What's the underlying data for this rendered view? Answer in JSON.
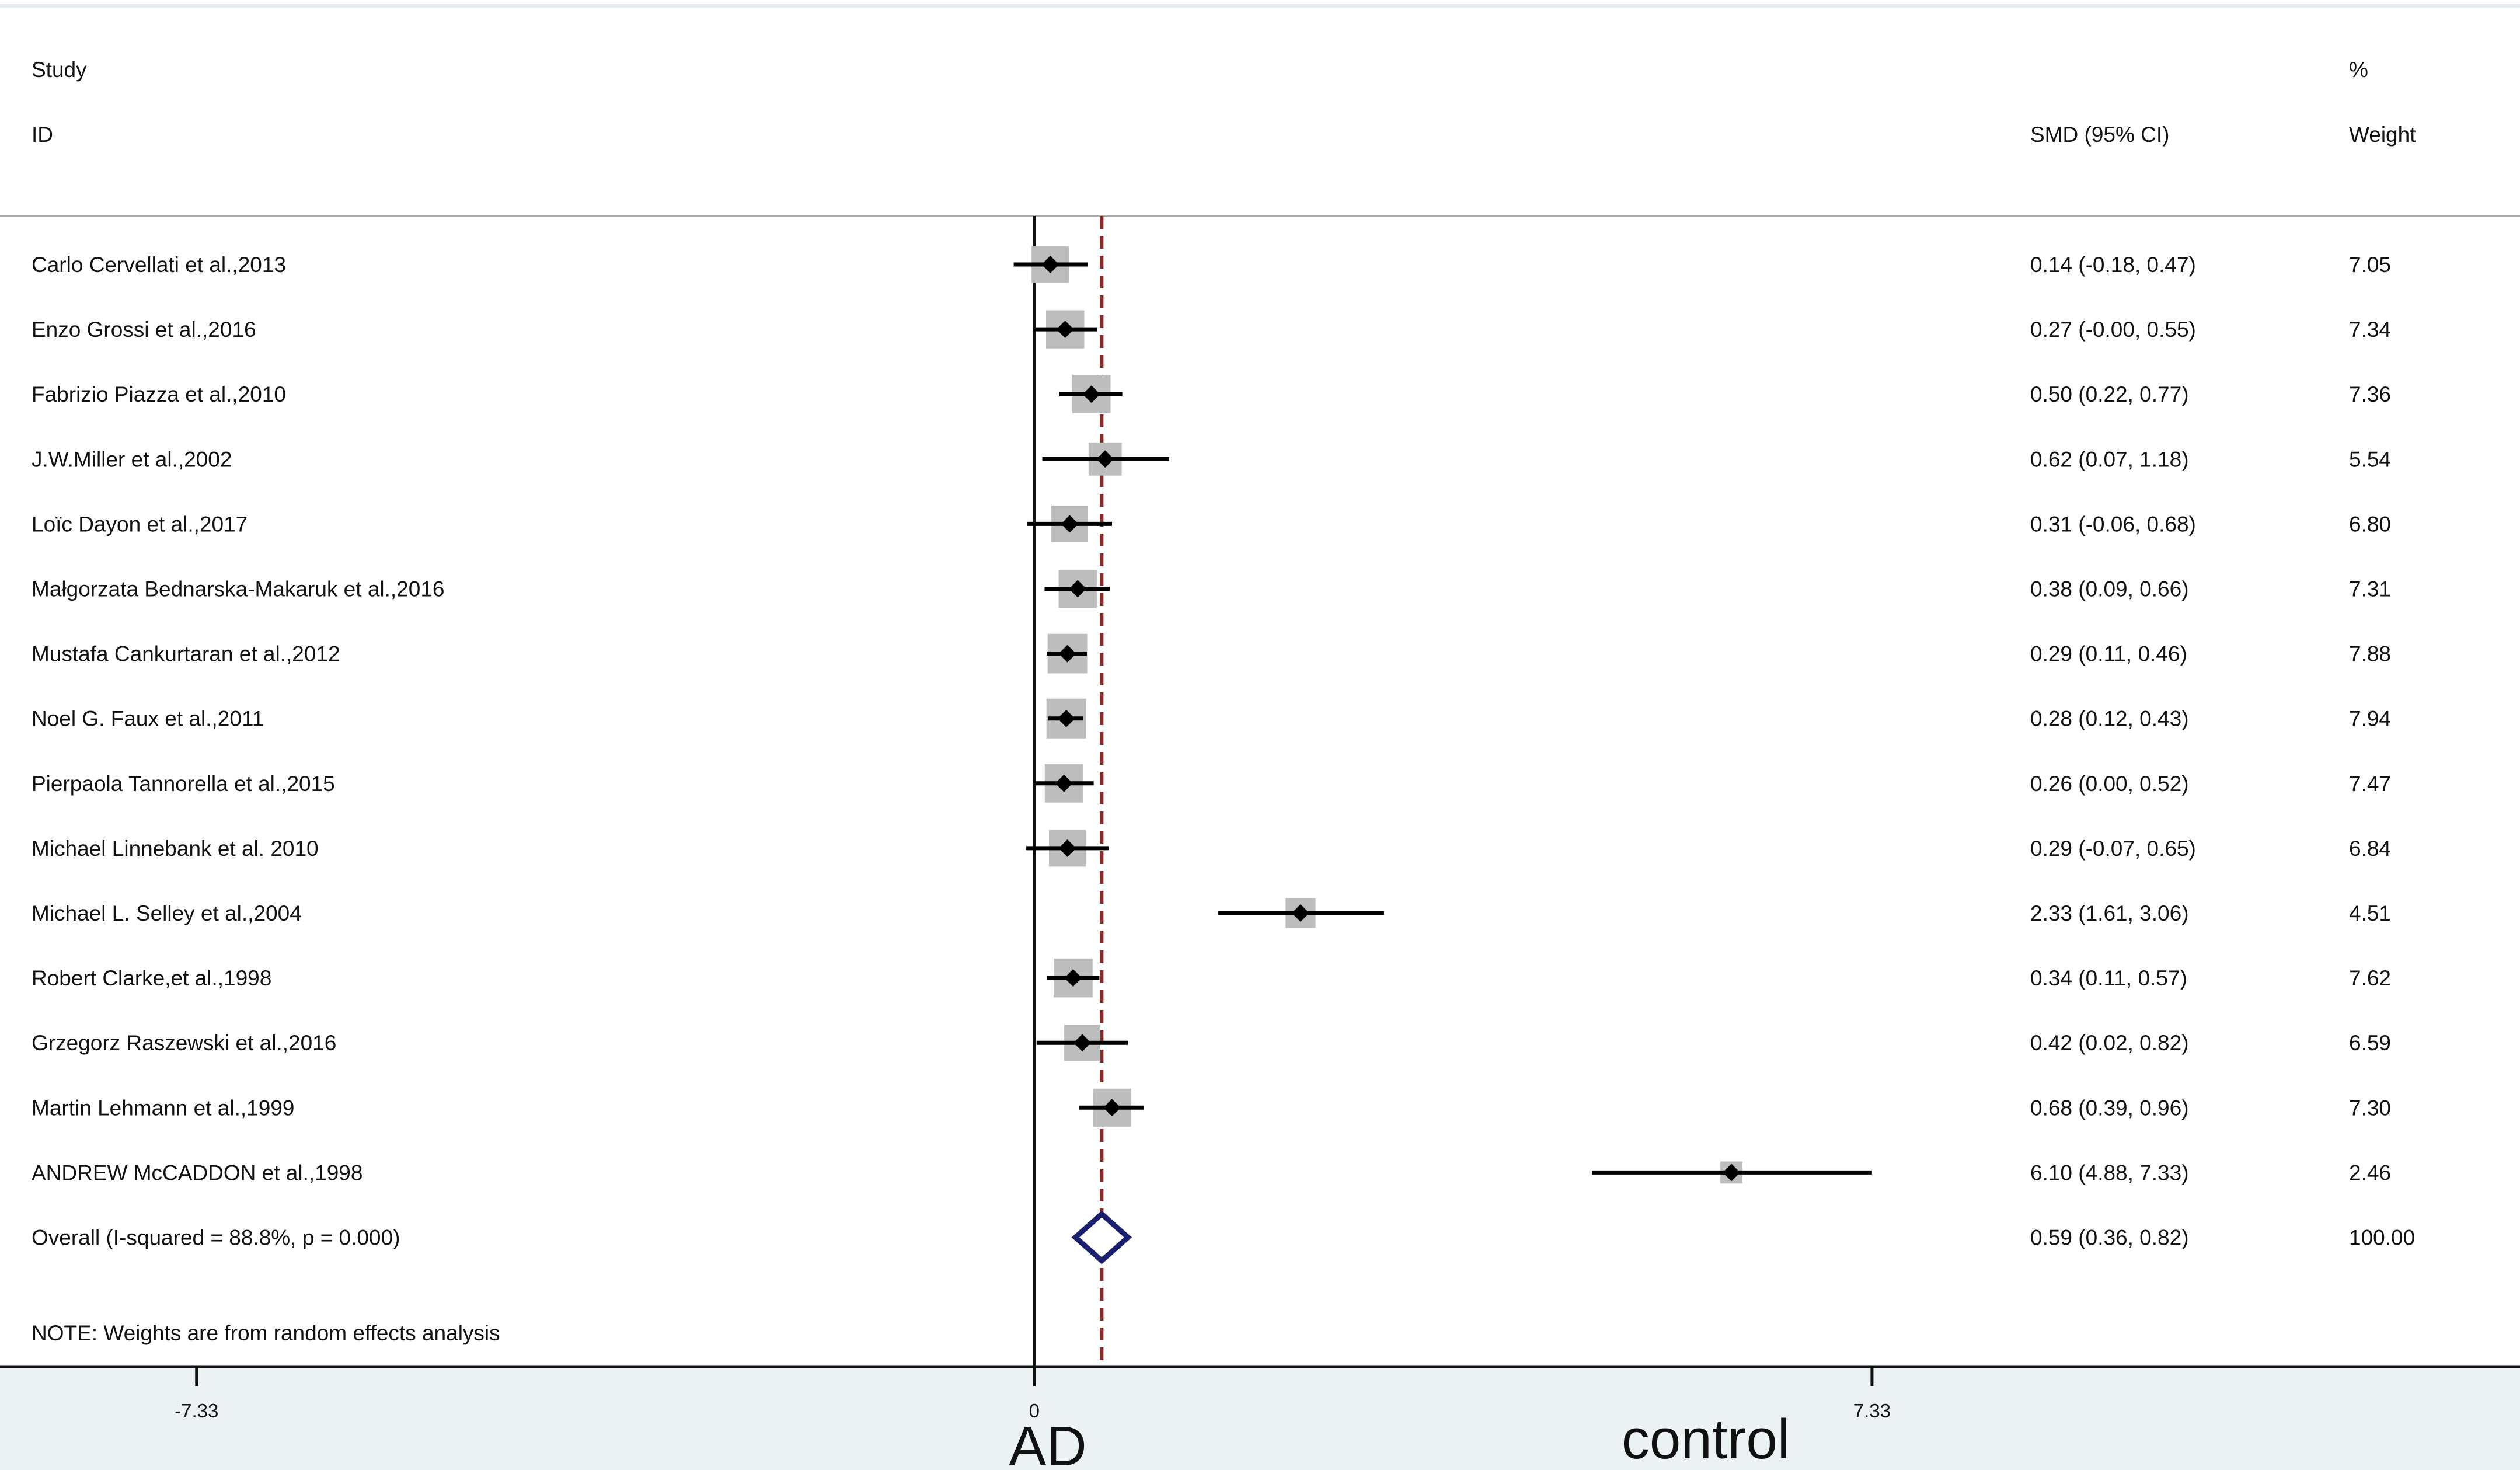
{
  "header": {
    "study_line1": "Study",
    "study_line2": "ID",
    "smd_label": "SMD (95% CI)",
    "weight_line1": "%",
    "weight_line2": "Weight"
  },
  "note": "NOTE: Weights are from random effects analysis",
  "side_labels": {
    "left": "AD",
    "right": "control"
  },
  "colors": {
    "box": "#bdbdbd",
    "point": "#000000",
    "overall_diamond": "#1a1f6e",
    "reference_line": "#8b2a2a",
    "axis_band": "#ecf2f4"
  },
  "chart_data": {
    "type": "forest",
    "xlim": [
      -9.05,
      13.0
    ],
    "xticks": [
      -7.33,
      0,
      7.33
    ],
    "xtick_labels": [
      "-7.33",
      "0",
      "7.33"
    ],
    "null_line": 0,
    "overall_line": 0.59,
    "studies": [
      {
        "label": "Carlo Cervellati et al.,2013",
        "smd": 0.14,
        "lo": -0.18,
        "hi": 0.47,
        "ci_text": "0.14 (-0.18, 0.47)",
        "weight": 7.05,
        "weight_text": "7.05"
      },
      {
        "label": "Enzo Grossi et al.,2016",
        "smd": 0.27,
        "lo": -0.0,
        "hi": 0.55,
        "ci_text": "0.27 (-0.00, 0.55)",
        "weight": 7.34,
        "weight_text": "7.34"
      },
      {
        "label": "Fabrizio Piazza et al.,2010",
        "smd": 0.5,
        "lo": 0.22,
        "hi": 0.77,
        "ci_text": "0.50 (0.22, 0.77)",
        "weight": 7.36,
        "weight_text": "7.36"
      },
      {
        "label": "J.W.Miller et al.,2002",
        "smd": 0.62,
        "lo": 0.07,
        "hi": 1.18,
        "ci_text": "0.62 (0.07, 1.18)",
        "weight": 5.54,
        "weight_text": "5.54"
      },
      {
        "label": "Loïc Dayon et al.,2017",
        "smd": 0.31,
        "lo": -0.06,
        "hi": 0.68,
        "ci_text": "0.31 (-0.06, 0.68)",
        "weight": 6.8,
        "weight_text": "6.80"
      },
      {
        "label": "Małgorzata Bednarska-Makaruk et al.,2016",
        "smd": 0.38,
        "lo": 0.09,
        "hi": 0.66,
        "ci_text": "0.38 (0.09, 0.66)",
        "weight": 7.31,
        "weight_text": "7.31"
      },
      {
        "label": "Mustafa Cankurtaran et al.,2012",
        "smd": 0.29,
        "lo": 0.11,
        "hi": 0.46,
        "ci_text": "0.29 (0.11, 0.46)",
        "weight": 7.88,
        "weight_text": "7.88"
      },
      {
        "label": "Noel G. Faux et al.,2011",
        "smd": 0.28,
        "lo": 0.12,
        "hi": 0.43,
        "ci_text": "0.28 (0.12, 0.43)",
        "weight": 7.94,
        "weight_text": "7.94"
      },
      {
        "label": "Pierpaola Tannorella et al.,2015",
        "smd": 0.26,
        "lo": 0.0,
        "hi": 0.52,
        "ci_text": "0.26 (0.00, 0.52)",
        "weight": 7.47,
        "weight_text": "7.47"
      },
      {
        "label": "Michael Linnebank et al. 2010",
        "smd": 0.29,
        "lo": -0.07,
        "hi": 0.65,
        "ci_text": "0.29 (-0.07, 0.65)",
        "weight": 6.84,
        "weight_text": "6.84"
      },
      {
        "label": "Michael L. Selley et al.,2004",
        "smd": 2.33,
        "lo": 1.61,
        "hi": 3.06,
        "ci_text": "2.33 (1.61, 3.06)",
        "weight": 4.51,
        "weight_text": "4.51"
      },
      {
        "label": "Robert Clarke,et al.,1998",
        "smd": 0.34,
        "lo": 0.11,
        "hi": 0.57,
        "ci_text": "0.34 (0.11, 0.57)",
        "weight": 7.62,
        "weight_text": "7.62"
      },
      {
        "label": "Grzegorz Raszewski et al.,2016",
        "smd": 0.42,
        "lo": 0.02,
        "hi": 0.82,
        "ci_text": "0.42 (0.02, 0.82)",
        "weight": 6.59,
        "weight_text": "6.59"
      },
      {
        "label": "Martin Lehmann et al.,1999",
        "smd": 0.68,
        "lo": 0.39,
        "hi": 0.96,
        "ci_text": "0.68 (0.39, 0.96)",
        "weight": 7.3,
        "weight_text": "7.30"
      },
      {
        "label": "ANDREW McCADDON et al.,1998",
        "smd": 6.1,
        "lo": 4.88,
        "hi": 7.33,
        "ci_text": "6.10 (4.88, 7.33)",
        "weight": 2.46,
        "weight_text": "2.46"
      }
    ],
    "overall": {
      "label": "Overall  (I-squared = 88.8%, p = 0.000)",
      "smd": 0.59,
      "lo": 0.36,
      "hi": 0.82,
      "ci_text": "0.59 (0.36, 0.82)",
      "weight": 100.0,
      "weight_text": "100.00"
    }
  }
}
